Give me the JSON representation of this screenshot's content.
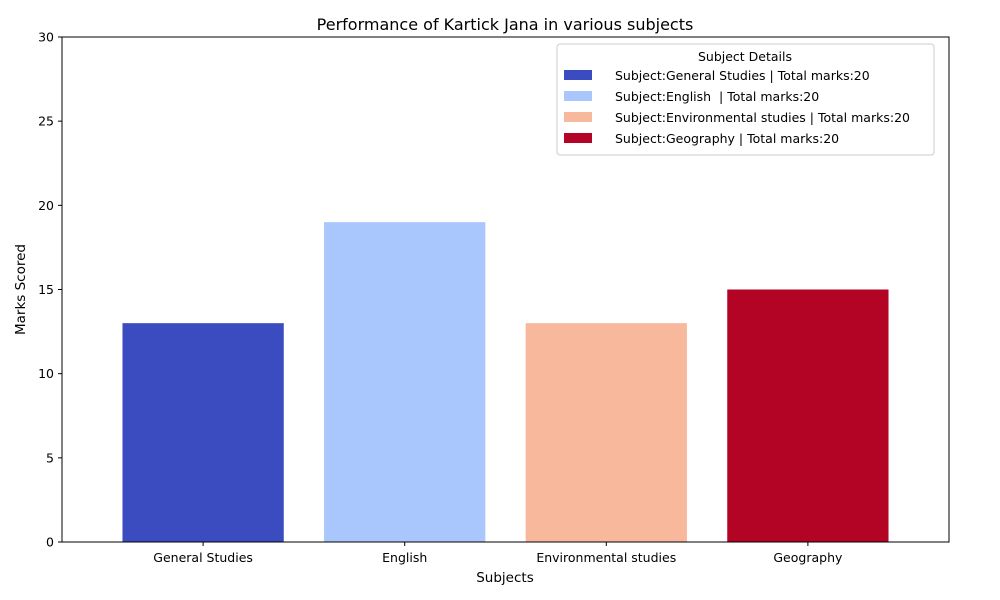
{
  "chart_data": {
    "type": "bar",
    "title": "Performance of Kartick Jana in various subjects",
    "xlabel": "Subjects",
    "ylabel": "Marks Scored",
    "categories": [
      "General Studies",
      "English",
      "Environmental studies",
      "Geography"
    ],
    "values": [
      13,
      19,
      13,
      15
    ],
    "colors": [
      "#3b4cc0",
      "#aac7fd",
      "#f7b89c",
      "#b40426"
    ],
    "ylim": [
      0,
      30
    ],
    "yticks": [
      0,
      5,
      10,
      15,
      20,
      25,
      30
    ],
    "grid": false,
    "legend": {
      "title": "Subject Details",
      "placement": "top-right",
      "entries": [
        "Subject:General Studies | Total marks:20",
        "Subject:English  | Total marks:20",
        "Subject:Environmental studies | Total marks:20",
        "Subject:Geography | Total marks:20"
      ]
    }
  }
}
